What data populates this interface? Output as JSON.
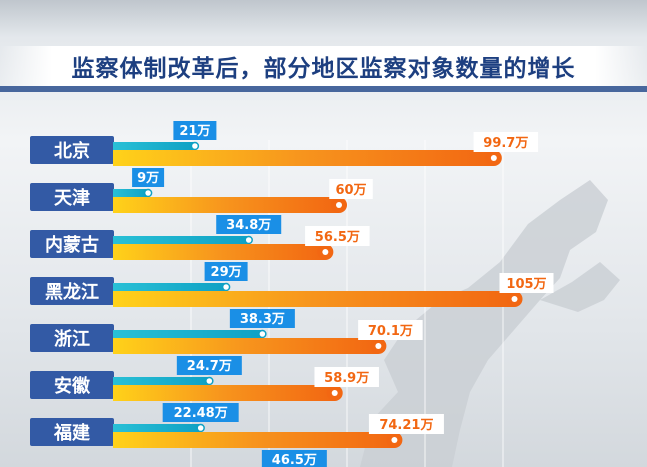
{
  "chart_data": {
    "type": "bar",
    "title": "监察体制改革后，部分地区监察对象数量的增长",
    "categories": [
      "北京",
      "天津",
      "内蒙古",
      "黑龙江",
      "浙江",
      "安徽",
      "福建",
      ""
    ],
    "series": [
      {
        "values": [
          21,
          9,
          34.8,
          29,
          38.3,
          24.7,
          22.48,
          46.5
        ],
        "labels": [
          "21万",
          "9万",
          "34.8万",
          "29万",
          "38.3万",
          "24.7万",
          "22.48万",
          "46.5万"
        ]
      },
      {
        "values": [
          99.7,
          60,
          56.5,
          105,
          70.1,
          58.9,
          74.21,
          null
        ],
        "labels": [
          "99.7万",
          "60万",
          "56.5万",
          "105万",
          "70.1万",
          "58.9万",
          "74.21万",
          ""
        ]
      }
    ],
    "colors": {
      "before": "#0fa1c4",
      "after": "#f26712",
      "label_before": "#1a8fe6",
      "title": "#1d3f80",
      "category_box": "#335aa5"
    }
  }
}
